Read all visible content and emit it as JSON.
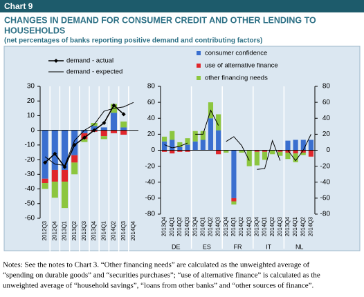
{
  "header": "Chart 9",
  "notes": [
    "Notes: See the notes to Chart 3. “Other financing needs” are calculated as the unweighted average of",
    "“spending on durable goods” and “securities purchases”; “use of alternative finance” is calculated as the",
    "unweighted average of “household savings”, “loans from other banks” and “other sources of finance”."
  ],
  "chart_data": [
    {
      "type": "bar",
      "title": [
        "CHANGES IN DEMAND FOR CONSUMER CREDIT AND OTHER LENDING TO",
        "HOUSEHOLDS"
      ],
      "subtitle": "(net percentages of banks reporting positive demand and contributing factors)",
      "categories": [
        "2012Q3",
        "2012Q4",
        "2013Q1",
        "2013Q2",
        "2013Q3",
        "2013Q4",
        "2014Q1",
        "2014Q2",
        "2014Q3",
        "2014Q4"
      ],
      "ylim": [
        -60,
        30
      ],
      "yticks": [
        -60,
        -50,
        -40,
        -30,
        -20,
        -10,
        0,
        10,
        20,
        30
      ],
      "series": [
        {
          "name": "demand - actual",
          "type": "line",
          "marker": "diamond",
          "color": "#000000",
          "values": [
            -22,
            -16,
            -25,
            -10,
            -5,
            0,
            5,
            17,
            11,
            null
          ]
        },
        {
          "name": "demand - expected",
          "type": "line",
          "color": "#000000",
          "values": [
            -18,
            -23,
            -24,
            -7,
            0,
            4,
            13,
            15,
            16,
            19
          ]
        },
        {
          "name": "consumer confidence",
          "type": "bar",
          "color": "#3a6fcf",
          "values": [
            -33,
            -27,
            -27,
            -17,
            -2,
            3,
            2,
            12,
            2,
            null
          ]
        },
        {
          "name": "use of alternative finance",
          "type": "bar",
          "color": "#e0262b",
          "values": [
            -3,
            -8,
            -8,
            -5,
            -4,
            -1,
            -4,
            -2,
            -3,
            null
          ]
        },
        {
          "name": "other financing needs",
          "type": "bar",
          "color": "#8cc63f",
          "values": [
            -4,
            -11,
            -18,
            -8,
            -2,
            2,
            -2,
            6,
            4,
            null
          ]
        }
      ]
    },
    {
      "type": "bar",
      "categories": [
        "2013Q4",
        "2014Q1",
        "2014Q2",
        "2014Q3",
        "2013Q4",
        "2014Q1",
        "2014Q2",
        "2014Q3",
        "2013Q4",
        "2014Q1",
        "2014Q2",
        "2014Q3",
        "2013Q4",
        "2014Q1",
        "2014Q2",
        "2014Q3",
        "2013Q4",
        "2014Q1",
        "2014Q2",
        "2014Q3"
      ],
      "groups": [
        "DE",
        "ES",
        "FR",
        "IT",
        "NL"
      ],
      "ylim": [
        -80,
        80
      ],
      "yticks": [
        -80,
        -60,
        -40,
        -20,
        0,
        20,
        40,
        60,
        80
      ],
      "series": [
        {
          "type": "line",
          "color": "#000000",
          "values": [
            7,
            3,
            5,
            9,
            20,
            20,
            50,
            31,
            11,
            17,
            6,
            -13,
            -24,
            -23,
            12,
            -13,
            0,
            -13,
            0,
            20
          ]
        },
        {
          "type": "bar",
          "color": "#3a6fcf",
          "values": [
            11,
            13,
            4,
            7,
            11,
            13,
            40,
            25,
            0,
            -60,
            0,
            0,
            0,
            0,
            0,
            0,
            12,
            13,
            13,
            13
          ]
        },
        {
          "type": "bar",
          "color": "#e0262b",
          "values": [
            -2,
            -4,
            -2,
            -2,
            0,
            0,
            0,
            -5,
            0,
            -4,
            0,
            0,
            -2,
            -2,
            0,
            -2,
            -3,
            -4,
            -3,
            -8
          ]
        },
        {
          "type": "bar",
          "color": "#8cc63f",
          "values": [
            6,
            11,
            6,
            8,
            13,
            11,
            20,
            20,
            -3,
            -4,
            -3,
            -20,
            -17,
            -10,
            -5,
            -5,
            -8,
            -11,
            -3,
            0
          ]
        }
      ]
    }
  ]
}
